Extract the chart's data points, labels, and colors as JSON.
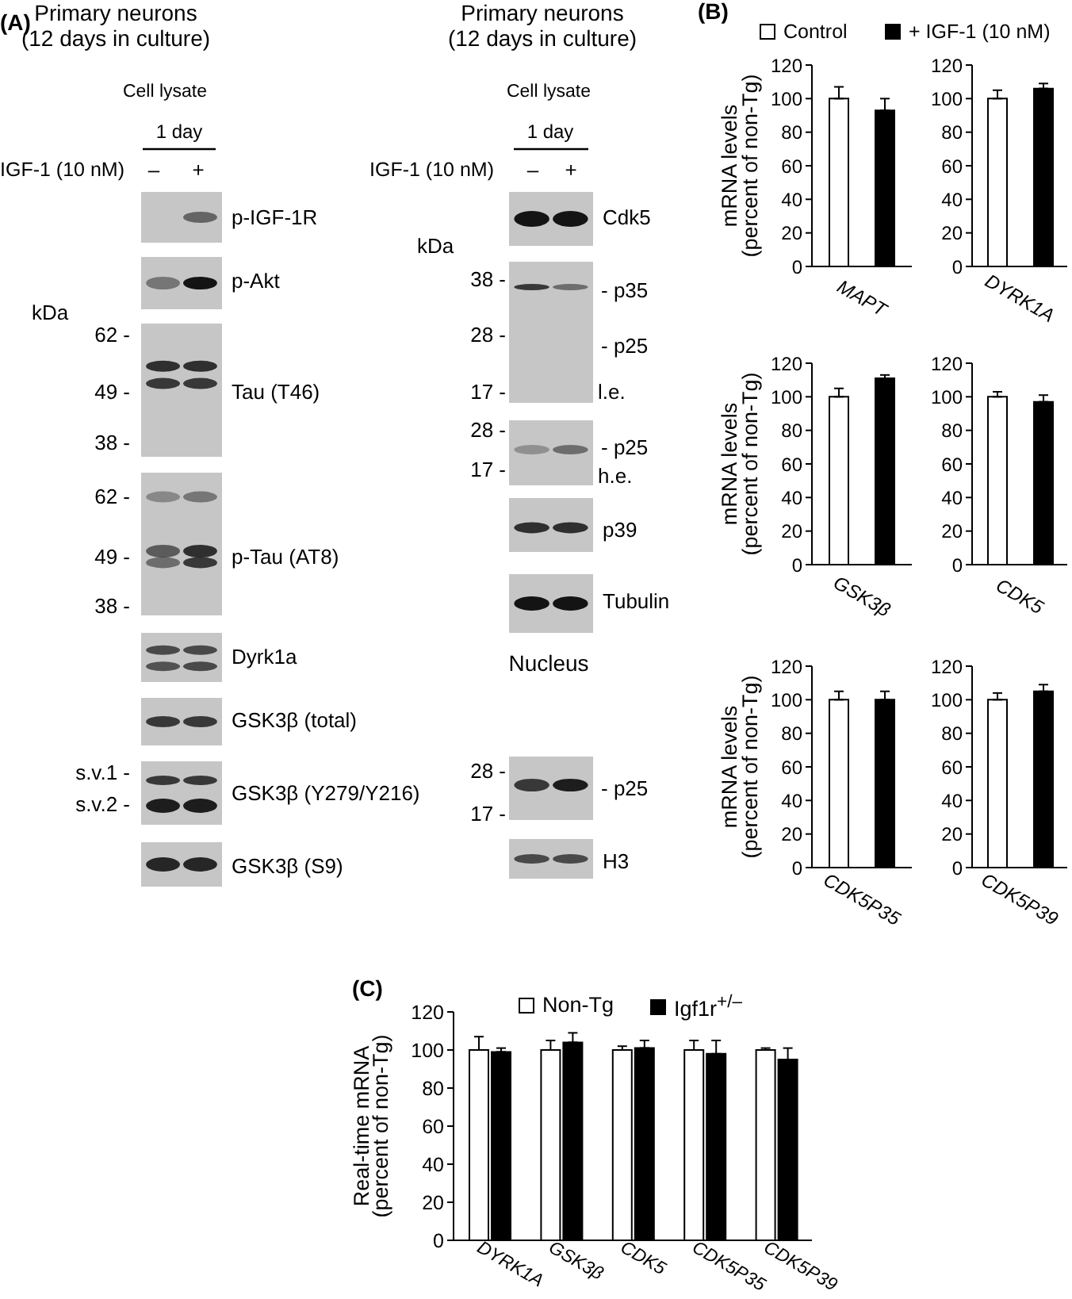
{
  "chart_data": [
    {
      "type": "other",
      "title": "(A)",
      "annotations": [
        "Primary neurons",
        "(12 days in culture)",
        "Cell lysate",
        "1 day",
        "IGF-1 (10 nM)",
        "–",
        "+",
        "p-IGF-1R",
        "p-Akt",
        "kDa",
        "62 -",
        "49 -",
        "38 -",
        "Tau (T46)",
        "62 -",
        "49 -",
        "38 -",
        "p-Tau (AT8)",
        "Dyrk1a",
        "GSK3β (total)",
        "s.v.1 -",
        "s.v.2 -",
        "GSK3β (Y279/Y216)",
        "GSK3β (S9)",
        "Primary neurons",
        "(12 days in culture)",
        "Cell lysate",
        "1 day",
        "IGF-1 (10 nM)",
        "–",
        "+",
        "Cdk5",
        "kDa",
        "38 -",
        "28 -",
        "17 -",
        "- p35",
        "- p25",
        "l.e.",
        "28 -",
        "17 -",
        "- p25",
        "h.e.",
        "p39",
        "Tubulin",
        "Nucleus",
        "28 -",
        "17 -",
        "- p25",
        "H3"
      ]
    },
    {
      "type": "bar",
      "title": "(B)",
      "categories": [
        "MAPT"
      ],
      "series": [
        {
          "name": "Control",
          "color": "#ffffff",
          "values": [
            100
          ],
          "errors": [
            [
              100,
              107
            ]
          ]
        },
        {
          "name": "+ IGF-1 (10 nM)",
          "color": "#000000",
          "values": [
            93
          ],
          "errors": [
            [
              93,
              100
            ]
          ]
        }
      ],
      "ylabel": "mRNA levels\n(percent of non-Tg)",
      "ylim": [
        0,
        120
      ],
      "yticks": [
        0,
        20,
        40,
        60,
        80,
        100,
        120
      ],
      "legend": "top"
    },
    {
      "type": "bar",
      "categories": [
        "DYRK1A"
      ],
      "series": [
        {
          "color": "#ffffff",
          "values": [
            100
          ],
          "errors": [
            [
              100,
              105
            ]
          ]
        },
        {
          "color": "#000000",
          "values": [
            106
          ],
          "errors": [
            [
              106,
              109
            ]
          ]
        }
      ],
      "ylim": [
        0,
        120
      ],
      "yticks": [
        0,
        20,
        40,
        60,
        80,
        100,
        120
      ]
    },
    {
      "type": "bar",
      "categories": [
        "GSK3β"
      ],
      "series": [
        {
          "color": "#ffffff",
          "values": [
            100
          ],
          "errors": [
            [
              100,
              105
            ]
          ]
        },
        {
          "color": "#000000",
          "values": [
            111
          ],
          "errors": [
            [
              111,
              113
            ]
          ]
        }
      ],
      "ylabel": "mRNA levels\n(percent of non-Tg)",
      "ylim": [
        0,
        120
      ],
      "yticks": [
        0,
        20,
        40,
        60,
        80,
        100,
        120
      ]
    },
    {
      "type": "bar",
      "categories": [
        "CDK5"
      ],
      "series": [
        {
          "color": "#ffffff",
          "values": [
            100
          ],
          "errors": [
            [
              100,
              103
            ]
          ]
        },
        {
          "color": "#000000",
          "values": [
            97
          ],
          "errors": [
            [
              97,
              101
            ]
          ]
        }
      ],
      "ylim": [
        0,
        120
      ],
      "yticks": [
        0,
        20,
        40,
        60,
        80,
        100,
        120
      ]
    },
    {
      "type": "bar",
      "categories": [
        "CDK5P35"
      ],
      "series": [
        {
          "color": "#ffffff",
          "values": [
            100
          ],
          "errors": [
            [
              100,
              105
            ]
          ]
        },
        {
          "color": "#000000",
          "values": [
            100
          ],
          "errors": [
            [
              100,
              105
            ]
          ]
        }
      ],
      "ylabel": "mRNA levels\n(percent of non-Tg)",
      "ylim": [
        0,
        120
      ],
      "yticks": [
        0,
        20,
        40,
        60,
        80,
        100,
        120
      ]
    },
    {
      "type": "bar",
      "categories": [
        "CDK5P39"
      ],
      "series": [
        {
          "color": "#ffffff",
          "values": [
            100
          ],
          "errors": [
            [
              100,
              104
            ]
          ]
        },
        {
          "color": "#000000",
          "values": [
            105
          ],
          "errors": [
            [
              105,
              109
            ]
          ]
        }
      ],
      "ylim": [
        0,
        120
      ],
      "yticks": [
        0,
        20,
        40,
        60,
        80,
        100,
        120
      ]
    },
    {
      "type": "bar",
      "title": "(C)",
      "categories": [
        "DYRK1A",
        "GSK3β",
        "CDK5",
        "CDK5P35",
        "CDK5P39"
      ],
      "series": [
        {
          "name": "Non-Tg",
          "color": "#ffffff",
          "values": [
            100,
            100,
            100,
            100,
            100
          ],
          "errors": [
            [
              100,
              107
            ],
            [
              100,
              105
            ],
            [
              100,
              102
            ],
            [
              100,
              105
            ],
            [
              100,
              101
            ]
          ]
        },
        {
          "name": "Igf1r$^{+/–}$",
          "color": "#000000",
          "values": [
            99,
            104,
            101,
            98,
            95
          ],
          "errors": [
            [
              99,
              101
            ],
            [
              104,
              109
            ],
            [
              101,
              105
            ],
            [
              98,
              105
            ],
            [
              95,
              101
            ]
          ]
        }
      ],
      "ylabel": "Real-time mRNA\n(percent of non-Tg)",
      "ylim": [
        0,
        120
      ],
      "yticks": [
        0,
        20,
        40,
        60,
        80,
        100,
        120
      ],
      "legend": "top"
    }
  ]
}
